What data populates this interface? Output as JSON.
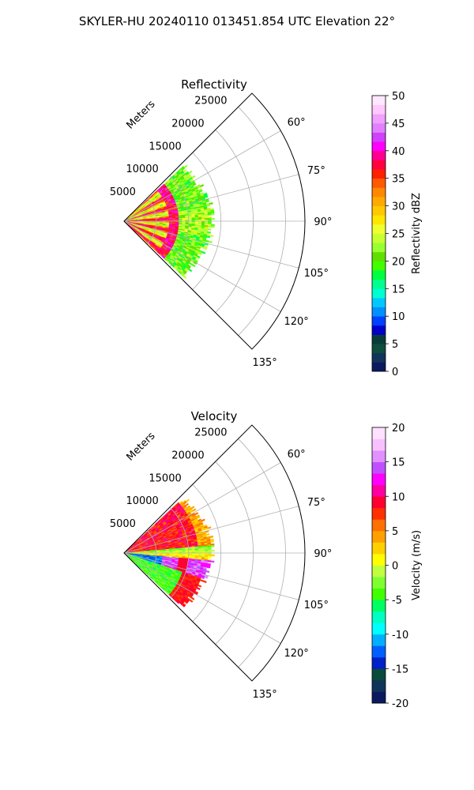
{
  "suptitle": "SKYLER-HU  20240110  013451.854 UTC Elevation 22°",
  "chart_data": [
    {
      "type": "heatmap",
      "title": "Reflectivity",
      "projection": "polar-sector",
      "theta_range_deg": [
        45,
        135
      ],
      "theta_ticks": [
        "60°",
        "75°",
        "90°",
        "105°",
        "120°",
        "135°"
      ],
      "theta_tick_values": [
        60,
        75,
        90,
        105,
        120,
        135
      ],
      "r_label": "Meters",
      "r_ticks": [
        "5000",
        "10000",
        "15000",
        "20000",
        "25000"
      ],
      "r_tick_values": [
        5000,
        10000,
        15000,
        20000,
        25000
      ],
      "rmax": 28000,
      "grid": true,
      "data_extent": {
        "theta_deg": [
          47,
          133
        ],
        "r_max_m": 13500
      },
      "colorbar": {
        "label": "Reflectivity dBZ",
        "ticks": [
          "0",
          "5",
          "10",
          "15",
          "20",
          "25",
          "30",
          "35",
          "40",
          "45",
          "50"
        ],
        "range": [
          0,
          50
        ]
      }
    },
    {
      "type": "heatmap",
      "title": "Velocity",
      "projection": "polar-sector",
      "theta_range_deg": [
        45,
        135
      ],
      "theta_ticks": [
        "60°",
        "75°",
        "90°",
        "105°",
        "120°",
        "135°"
      ],
      "theta_tick_values": [
        60,
        75,
        90,
        105,
        120,
        135
      ],
      "r_label": "Meters",
      "r_ticks": [
        "5000",
        "10000",
        "15000",
        "20000",
        "25000"
      ],
      "r_tick_values": [
        5000,
        10000,
        15000,
        20000,
        25000
      ],
      "rmax": 28000,
      "grid": true,
      "data_extent": {
        "theta_deg": [
          47,
          133
        ],
        "r_max_m": 13500
      },
      "colorbar": {
        "label": "Velocity (m/s)",
        "ticks": [
          "-20",
          "-15",
          "-10",
          "-5",
          "0",
          "5",
          "10",
          "15",
          "20"
        ],
        "range": [
          -20,
          20
        ]
      }
    }
  ],
  "colors": {
    "reflectivity_scale": [
      "#0b1a5e",
      "#10345a",
      "#0f4d3e",
      "#0a3b3b",
      "#0000c8",
      "#0040ff",
      "#0090ff",
      "#00c8ff",
      "#00ffd0",
      "#00ff90",
      "#00ff40",
      "#40ff00",
      "#60e000",
      "#9aff30",
      "#c8ff30",
      "#f0ff30",
      "#ffe600",
      "#ffc800",
      "#ffaa00",
      "#ff8800",
      "#ff5a00",
      "#ff2000",
      "#ff0040",
      "#ff0090",
      "#ff00ff",
      "#d040ff",
      "#e080ff",
      "#f0a0ff",
      "#ffc8ff",
      "#ffe8ff"
    ],
    "velocity_scale": [
      "#0b1a5e",
      "#10345a",
      "#0a4a3a",
      "#0020c8",
      "#0060ff",
      "#00b0ff",
      "#00ffff",
      "#00ffc0",
      "#00ff60",
      "#40ff00",
      "#80ff30",
      "#c0ff40",
      "#ffff00",
      "#ffd000",
      "#ffa000",
      "#ff7000",
      "#ff3000",
      "#ff0030",
      "#ff00a0",
      "#ff00ff",
      "#c050ff",
      "#e090ff",
      "#f8c0ff",
      "#ffe0ff"
    ]
  }
}
